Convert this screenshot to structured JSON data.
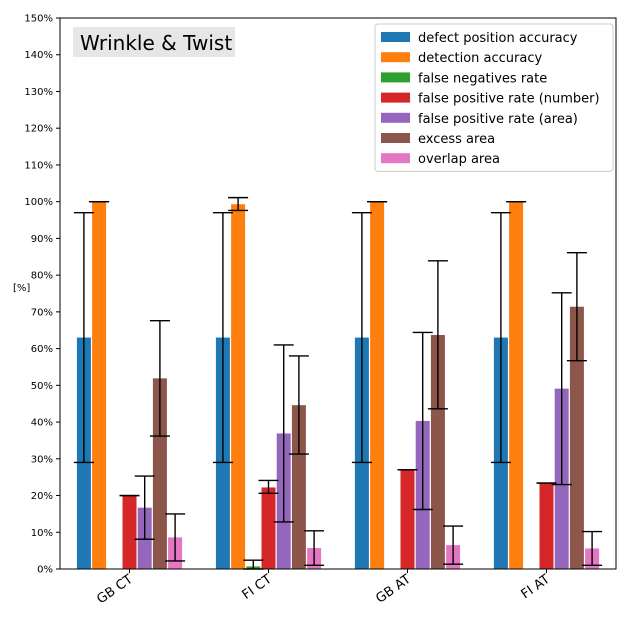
{
  "chart_data": {
    "type": "bar",
    "title": "Wrinkle & Twist",
    "xlabel": "",
    "ylabel": "[%]",
    "ylim": [
      0,
      150
    ],
    "yticks": [
      "0%",
      "10%",
      "20%",
      "30%",
      "40%",
      "50%",
      "60%",
      "70%",
      "80%",
      "90%",
      "100%",
      "110%",
      "120%",
      "130%",
      "140%",
      "150%"
    ],
    "categories": [
      "GB CT",
      "FI CT",
      "GB AT",
      "FI AT"
    ],
    "legend_position": "top-right",
    "grid": false,
    "series": [
      {
        "name": "defect position accuracy",
        "color": "#1f77b4",
        "values": [
          63,
          63,
          63,
          63
        ],
        "errors": [
          [
            29,
            97
          ],
          [
            29,
            97
          ],
          [
            29,
            97
          ],
          [
            29,
            97
          ]
        ]
      },
      {
        "name": "detection accuracy",
        "color": "#ff7f0e",
        "values": [
          100,
          99.3,
          100,
          100
        ],
        "errors": [
          [
            100,
            100
          ],
          [
            97.6,
            101.1
          ],
          [
            100,
            100
          ],
          [
            100,
            100
          ]
        ]
      },
      {
        "name": "false negatives rate",
        "color": "#2ca02c",
        "values": [
          0,
          0.7,
          0,
          0
        ],
        "errors": [
          null,
          [
            0,
            2.4
          ],
          null,
          null
        ]
      },
      {
        "name": "false positive rate (number)",
        "color": "#d62728",
        "values": [
          20,
          22.2,
          27,
          23.4
        ],
        "errors": [
          [
            20,
            20
          ],
          [
            20.6,
            24.1
          ],
          [
            27,
            27
          ],
          [
            23.4,
            23.4
          ]
        ]
      },
      {
        "name": "false positive rate (area)",
        "color": "#9467bd",
        "values": [
          16.7,
          36.9,
          40.3,
          49.1
        ],
        "errors": [
          [
            8.1,
            25.3
          ],
          [
            12.8,
            61
          ],
          [
            16.2,
            64.4
          ],
          [
            23,
            75.2
          ]
        ]
      },
      {
        "name": "excess area",
        "color": "#8c564b",
        "values": [
          51.9,
          44.6,
          63.7,
          71.4
        ],
        "errors": [
          [
            36.2,
            67.6
          ],
          [
            31.3,
            58
          ],
          [
            43.6,
            83.9
          ],
          [
            56.7,
            86.1
          ]
        ]
      },
      {
        "name": "overlap area",
        "color": "#e377c2",
        "values": [
          8.6,
          5.7,
          6.5,
          5.6
        ],
        "errors": [
          [
            2.2,
            15
          ],
          [
            1,
            10.4
          ],
          [
            1.3,
            11.7
          ],
          [
            1,
            10.2
          ]
        ]
      }
    ]
  }
}
